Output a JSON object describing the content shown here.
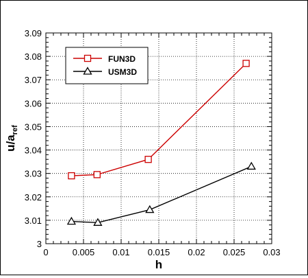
{
  "chart_data": {
    "type": "line",
    "title": "",
    "xlabel": "h",
    "ylabel_main": "u/a",
    "ylabel_sub": "ref",
    "xlim": [
      0,
      0.03
    ],
    "ylim": [
      3.0,
      3.09
    ],
    "x_ticks": [
      0,
      0.005,
      0.01,
      0.015,
      0.02,
      0.025,
      0.03
    ],
    "x_tick_labels": [
      "0",
      "0.005",
      "0.01",
      "0.015",
      "0.02",
      "0.025",
      "0.03"
    ],
    "y_ticks": [
      3.0,
      3.01,
      3.02,
      3.03,
      3.04,
      3.05,
      3.06,
      3.07,
      3.08,
      3.09
    ],
    "y_tick_labels": [
      "3",
      "3.01",
      "3.02",
      "3.03",
      "3.04",
      "3.05",
      "3.06",
      "3.07",
      "3.08",
      "3.09"
    ],
    "grid": true,
    "legend_position": "top-left",
    "series": [
      {
        "name": "FUN3D",
        "color": "#cc0000",
        "marker": "square",
        "x": [
          0.0034,
          0.0068,
          0.0136,
          0.0266
        ],
        "y": [
          3.029,
          3.0295,
          3.036,
          3.077
        ]
      },
      {
        "name": "USM3D",
        "color": "#000000",
        "marker": "triangle",
        "x": [
          0.0034,
          0.0069,
          0.0138,
          0.0273
        ],
        "y": [
          3.0095,
          3.009,
          3.0145,
          3.033
        ]
      }
    ]
  }
}
